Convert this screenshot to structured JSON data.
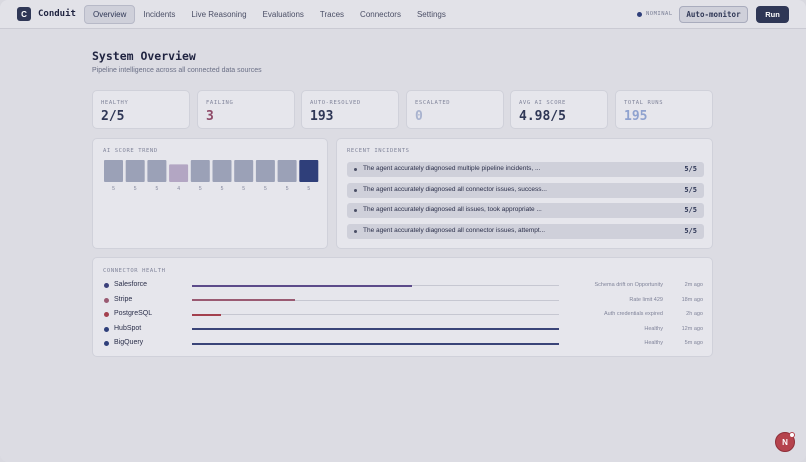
{
  "app": {
    "logo_letter": "C",
    "name": "Conduit"
  },
  "nav": {
    "tabs": [
      {
        "label": "Overview",
        "active": true
      },
      {
        "label": "Incidents",
        "active": false
      },
      {
        "label": "Live Reasoning",
        "active": false
      },
      {
        "label": "Evaluations",
        "active": false
      },
      {
        "label": "Traces",
        "active": false
      },
      {
        "label": "Connectors",
        "active": false
      },
      {
        "label": "Settings",
        "active": false
      }
    ],
    "status_text": "NOMINAL",
    "monitor_label": "Auto-monitor",
    "run_label": "Run"
  },
  "page": {
    "title": "System Overview",
    "subtitle": "Pipeline intelligence across all connected data sources"
  },
  "stats": [
    {
      "label": "HEALTHY",
      "value": "2/5",
      "color": "#2f3756"
    },
    {
      "label": "FAILING",
      "value": "3",
      "color": "#8e4a68"
    },
    {
      "label": "AUTO-RESOLVED",
      "value": "193",
      "color": "#2f3756"
    },
    {
      "label": "ESCALATED",
      "value": "0",
      "color": "#a9b3cf"
    },
    {
      "label": "AVG AI SCORE",
      "value": "4.98/5",
      "color": "#2f3756"
    },
    {
      "label": "TOTAL RUNS",
      "value": "195",
      "color": "#8fa2cf"
    }
  ],
  "trend": {
    "label": "AI SCORE TREND",
    "scores": [
      5,
      5,
      5,
      4,
      5,
      5,
      5,
      5,
      5,
      5
    ],
    "max": 5,
    "colors": {
      "normal": "#9ba1b7",
      "low": "#b3a6c3",
      "latest": "#2f3f7a"
    }
  },
  "incidents": {
    "label": "RECENT INCIDENTS",
    "items": [
      {
        "text": "The agent accurately diagnosed multiple pipeline incidents, ...",
        "score": "5/5"
      },
      {
        "text": "The agent accurately diagnosed all connector issues, success...",
        "score": "5/5"
      },
      {
        "text": "The agent accurately diagnosed all issues, took appropriate ...",
        "score": "5/5"
      },
      {
        "text": "The agent accurately diagnosed all connector issues, attempt...",
        "score": "5/5"
      }
    ]
  },
  "connectors": {
    "label": "CONNECTOR HEALTH",
    "items": [
      {
        "name": "Salesforce",
        "health": 0.6,
        "note": "Schema drift on Opportunity",
        "time": "2m ago",
        "color": "#5c4b8a",
        "dot": "#3a3f7a"
      },
      {
        "name": "Stripe",
        "health": 0.28,
        "note": "Rate limit 429",
        "time": "18m ago",
        "color": "#9a5a72",
        "dot": "#9a5a72"
      },
      {
        "name": "PostgreSQL",
        "health": 0.08,
        "note": "Auth credentials expired",
        "time": "2h ago",
        "color": "#a3404e",
        "dot": "#a3404e"
      },
      {
        "name": "HubSpot",
        "health": 1.0,
        "note": "Healthy",
        "time": "12m ago",
        "color": "#3a4478",
        "dot": "#2f3f7a"
      },
      {
        "name": "BigQuery",
        "health": 1.0,
        "note": "Healthy",
        "time": "5m ago",
        "color": "#3a4478",
        "dot": "#2f3f7a"
      }
    ]
  },
  "fab": {
    "letter": "N"
  }
}
